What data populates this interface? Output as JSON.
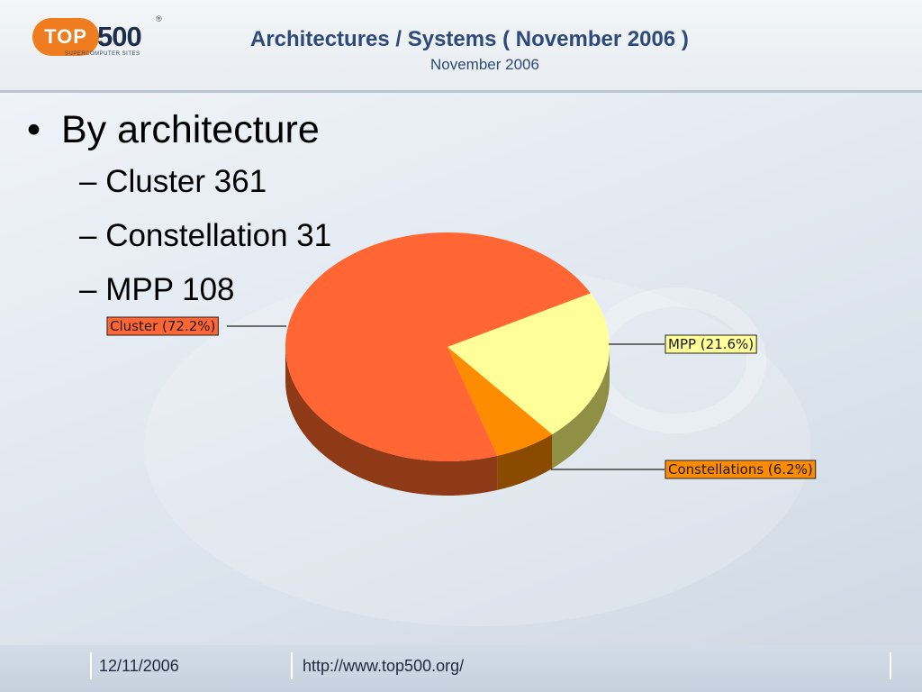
{
  "header": {
    "logo": {
      "badge": "TOP",
      "number": "500",
      "reg": "®",
      "tagline": "SUPERCOMPUTER SITES"
    },
    "title": "Architectures / Systems ( November 2006 )",
    "subtitle": "November 2006"
  },
  "bullets": {
    "main": "By architecture",
    "dot": "•",
    "items": [
      "– Cluster 361",
      "– Constellation 31",
      "– MPP 108"
    ]
  },
  "footer": {
    "date": "12/11/2006",
    "url": "http://www.top500.org/"
  },
  "colors": {
    "cluster": "#ff6633",
    "cluster_side": "#8f3a16",
    "mpp": "#ffff99",
    "mpp_side": "#8f8f45",
    "constellation": "#ff8c00",
    "constellation_side": "#8a4a00"
  },
  "chart_data": {
    "type": "pie",
    "title": "",
    "slices": [
      {
        "name": "Cluster",
        "value": 72.2,
        "label": "Cluster (72.2%)",
        "color": "#ff6633"
      },
      {
        "name": "MPP",
        "value": 21.6,
        "label": "MPP (21.6%)",
        "color": "#ffff99"
      },
      {
        "name": "Constellations",
        "value": 6.2,
        "label": "Constellations (6.2%)",
        "color": "#ff8c00"
      }
    ],
    "style": "3d"
  }
}
